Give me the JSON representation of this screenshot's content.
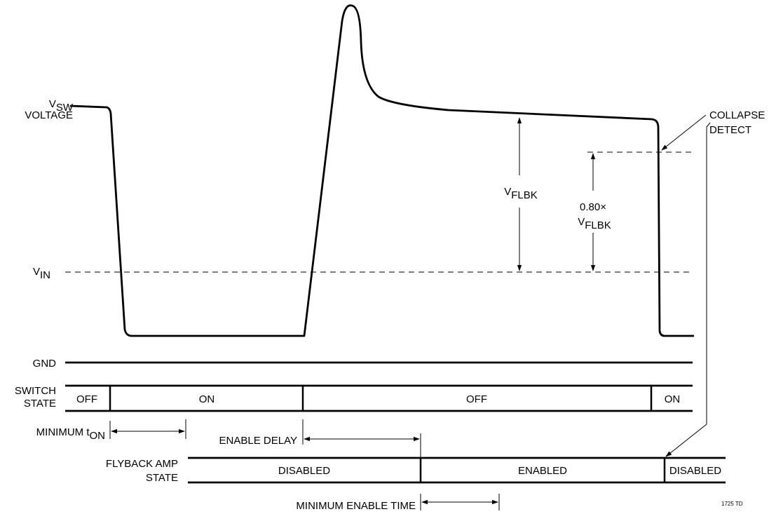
{
  "labels": {
    "vsw_main": "V",
    "vsw_sub": "SW",
    "voltage": "VOLTAGE",
    "vin_main": "V",
    "vin_sub": "IN",
    "gnd": "GND",
    "switch": "SWITCH",
    "state": "STATE",
    "flyback_amp": "FLYBACK AMP",
    "flyback_state": "STATE",
    "vflbk_main": "V",
    "vflbk_sub": "FLBK",
    "ratio": "0.80×",
    "vflbk2_main": "V",
    "vflbk2_sub": "FLBK",
    "collapse": "COLLAPSE",
    "detect": "DETECT",
    "min_ton_main": "MINIMUM t",
    "min_ton_sub": "ON",
    "enable_delay": "ENABLE DELAY",
    "min_enable_time": "MINIMUM ENABLE TIME",
    "figure_id": "1725 TD"
  },
  "switch_states": [
    "OFF",
    "ON",
    "OFF",
    "ON"
  ],
  "amp_states": [
    "DISABLED",
    "ENABLED",
    "DISABLED"
  ]
}
